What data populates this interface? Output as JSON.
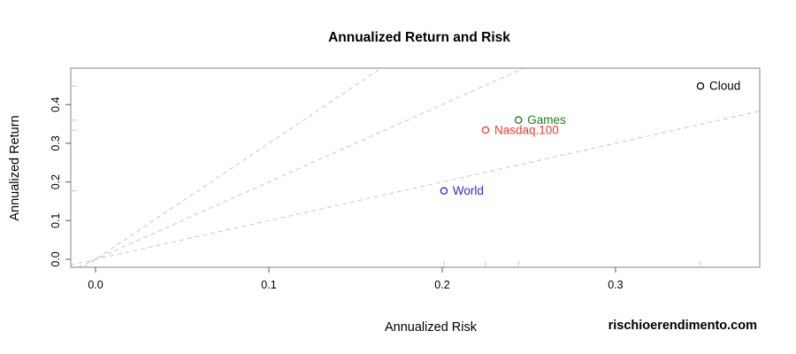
{
  "page": {
    "background": "#ffffff",
    "watermark": "rischioerendimento.com"
  },
  "chart_data": {
    "type": "scatter",
    "title": "Annualized Return and Risk",
    "xlabel": "Annualized Risk",
    "ylabel": "Annualized Return",
    "xlim": [
      -0.0143,
      0.3832
    ],
    "ylim": [
      -0.0206,
      0.4943
    ],
    "x_ticks": [
      0.0,
      0.1,
      0.2,
      0.3
    ],
    "y_ticks": [
      0.0,
      0.1,
      0.2,
      0.3,
      0.4
    ],
    "grid": false,
    "legend_position": "none",
    "points": [
      {
        "name": "World",
        "x": 0.201,
        "y": 0.177,
        "color": "#2A2AE0"
      },
      {
        "name": "Nasdaq.100",
        "x": 0.225,
        "y": 0.334,
        "color": "#F03B2E"
      },
      {
        "name": "Games",
        "x": 0.244,
        "y": 0.36,
        "color": "#1E7D1E"
      },
      {
        "name": "Cloud",
        "x": 0.349,
        "y": 0.448,
        "color": "#000000"
      }
    ],
    "reference_lines": [
      {
        "slope": 1,
        "intercept": 0,
        "style": "dashed",
        "color": "#C6C6C6"
      },
      {
        "slope": 2,
        "intercept": 0,
        "style": "dashed",
        "color": "#C6C6C6"
      },
      {
        "slope": 3,
        "intercept": 0,
        "style": "dashed",
        "color": "#C6C6C6"
      }
    ],
    "rug_color": "#C6C6C6",
    "box_color": "#999999",
    "tick_color": "#666666",
    "tick_label_color": "#000000"
  }
}
